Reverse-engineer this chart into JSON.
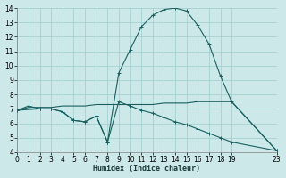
{
  "xlabel": "Humidex (Indice chaleur)",
  "bg_color": "#cce8e8",
  "grid_color": "#9ecece",
  "line_color": "#1a6060",
  "xlim": [
    0,
    23
  ],
  "ylim": [
    4,
    14
  ],
  "xticks": [
    0,
    1,
    2,
    3,
    4,
    5,
    6,
    7,
    8,
    9,
    10,
    11,
    12,
    13,
    14,
    15,
    16,
    17,
    18,
    19,
    23
  ],
  "yticks": [
    4,
    5,
    6,
    7,
    8,
    9,
    10,
    11,
    12,
    13,
    14
  ],
  "line1_x": [
    0,
    1,
    2,
    3,
    4,
    5,
    6,
    7,
    8,
    9,
    10,
    11,
    12,
    13,
    14,
    15,
    16,
    17,
    18,
    19,
    23
  ],
  "line1_y": [
    6.9,
    7.2,
    7.0,
    7.0,
    6.8,
    6.2,
    6.1,
    6.5,
    4.7,
    9.5,
    11.1,
    12.7,
    13.5,
    13.9,
    14.0,
    13.8,
    12.8,
    11.5,
    9.3,
    7.5,
    4.1
  ],
  "line2_x": [
    0,
    1,
    2,
    3,
    4,
    5,
    6,
    7,
    8,
    9,
    10,
    11,
    12,
    13,
    14,
    15,
    16,
    17,
    18,
    19,
    23
  ],
  "line2_y": [
    6.9,
    7.1,
    7.1,
    7.1,
    7.2,
    7.2,
    7.2,
    7.3,
    7.3,
    7.3,
    7.3,
    7.3,
    7.3,
    7.4,
    7.4,
    7.4,
    7.5,
    7.5,
    7.5,
    7.5,
    4.1
  ],
  "line3_x": [
    0,
    2,
    3,
    4,
    5,
    6,
    7,
    8,
    9,
    10,
    11,
    12,
    13,
    14,
    15,
    16,
    17,
    18,
    19,
    23
  ],
  "line3_y": [
    6.9,
    7.0,
    7.0,
    6.8,
    6.2,
    6.1,
    6.5,
    4.7,
    7.5,
    7.2,
    6.9,
    6.7,
    6.4,
    6.1,
    5.9,
    5.6,
    5.3,
    5.0,
    4.7,
    4.1
  ]
}
